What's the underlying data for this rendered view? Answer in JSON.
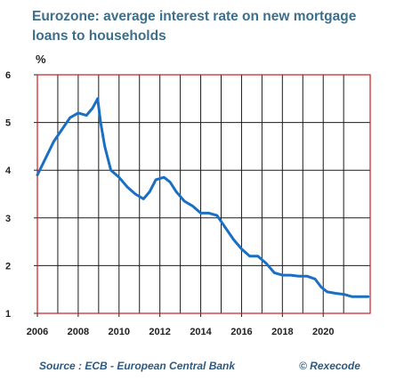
{
  "colors": {
    "title": "#3d6f8c",
    "line": "#1a6fc4",
    "frame": "#c81e1e",
    "grid": "#1b1b1b",
    "text": "#222222",
    "footer": "#2c5a82"
  },
  "chart_data": {
    "type": "line",
    "title": "Eurozone: average interest rate on new mortgage loans to households",
    "ylabel": "%",
    "xlabel": "",
    "xlim": [
      2006,
      2022.3
    ],
    "ylim": [
      1,
      6
    ],
    "x_ticks": [
      "2006",
      "2008",
      "2010",
      "2012",
      "2014",
      "2016",
      "2018",
      "2020"
    ],
    "y_ticks": [
      "1",
      "2",
      "3",
      "4",
      "5",
      "6"
    ],
    "grid": true,
    "legend": "none",
    "series": [
      {
        "x": [
          2006.0,
          2006.4,
          2006.8,
          2007.2,
          2007.6,
          2008.0,
          2008.4,
          2008.7,
          2008.95,
          2009.1,
          2009.3,
          2009.6,
          2010.0,
          2010.4,
          2010.8,
          2011.2,
          2011.5,
          2011.8,
          2012.2,
          2012.5,
          2012.8,
          2013.2,
          2013.6,
          2014.0,
          2014.4,
          2014.8,
          2015.2,
          2015.6,
          2016.0,
          2016.4,
          2016.8,
          2017.2,
          2017.6,
          2018.0,
          2018.4,
          2018.8,
          2019.2,
          2019.6,
          2019.9,
          2020.2,
          2020.6,
          2021.0,
          2021.4,
          2021.8,
          2022.2
        ],
        "y": [
          3.9,
          4.25,
          4.6,
          4.85,
          5.1,
          5.2,
          5.15,
          5.3,
          5.5,
          5.0,
          4.5,
          4.0,
          3.85,
          3.65,
          3.5,
          3.4,
          3.55,
          3.8,
          3.85,
          3.75,
          3.55,
          3.35,
          3.25,
          3.1,
          3.1,
          3.05,
          2.8,
          2.55,
          2.35,
          2.2,
          2.2,
          2.05,
          1.85,
          1.8,
          1.8,
          1.78,
          1.78,
          1.72,
          1.55,
          1.45,
          1.42,
          1.4,
          1.35,
          1.35,
          1.35
        ]
      }
    ]
  },
  "unit_label": "%",
  "source": "Source : ECB - European Central Bank",
  "copyright": "© Rexecode"
}
